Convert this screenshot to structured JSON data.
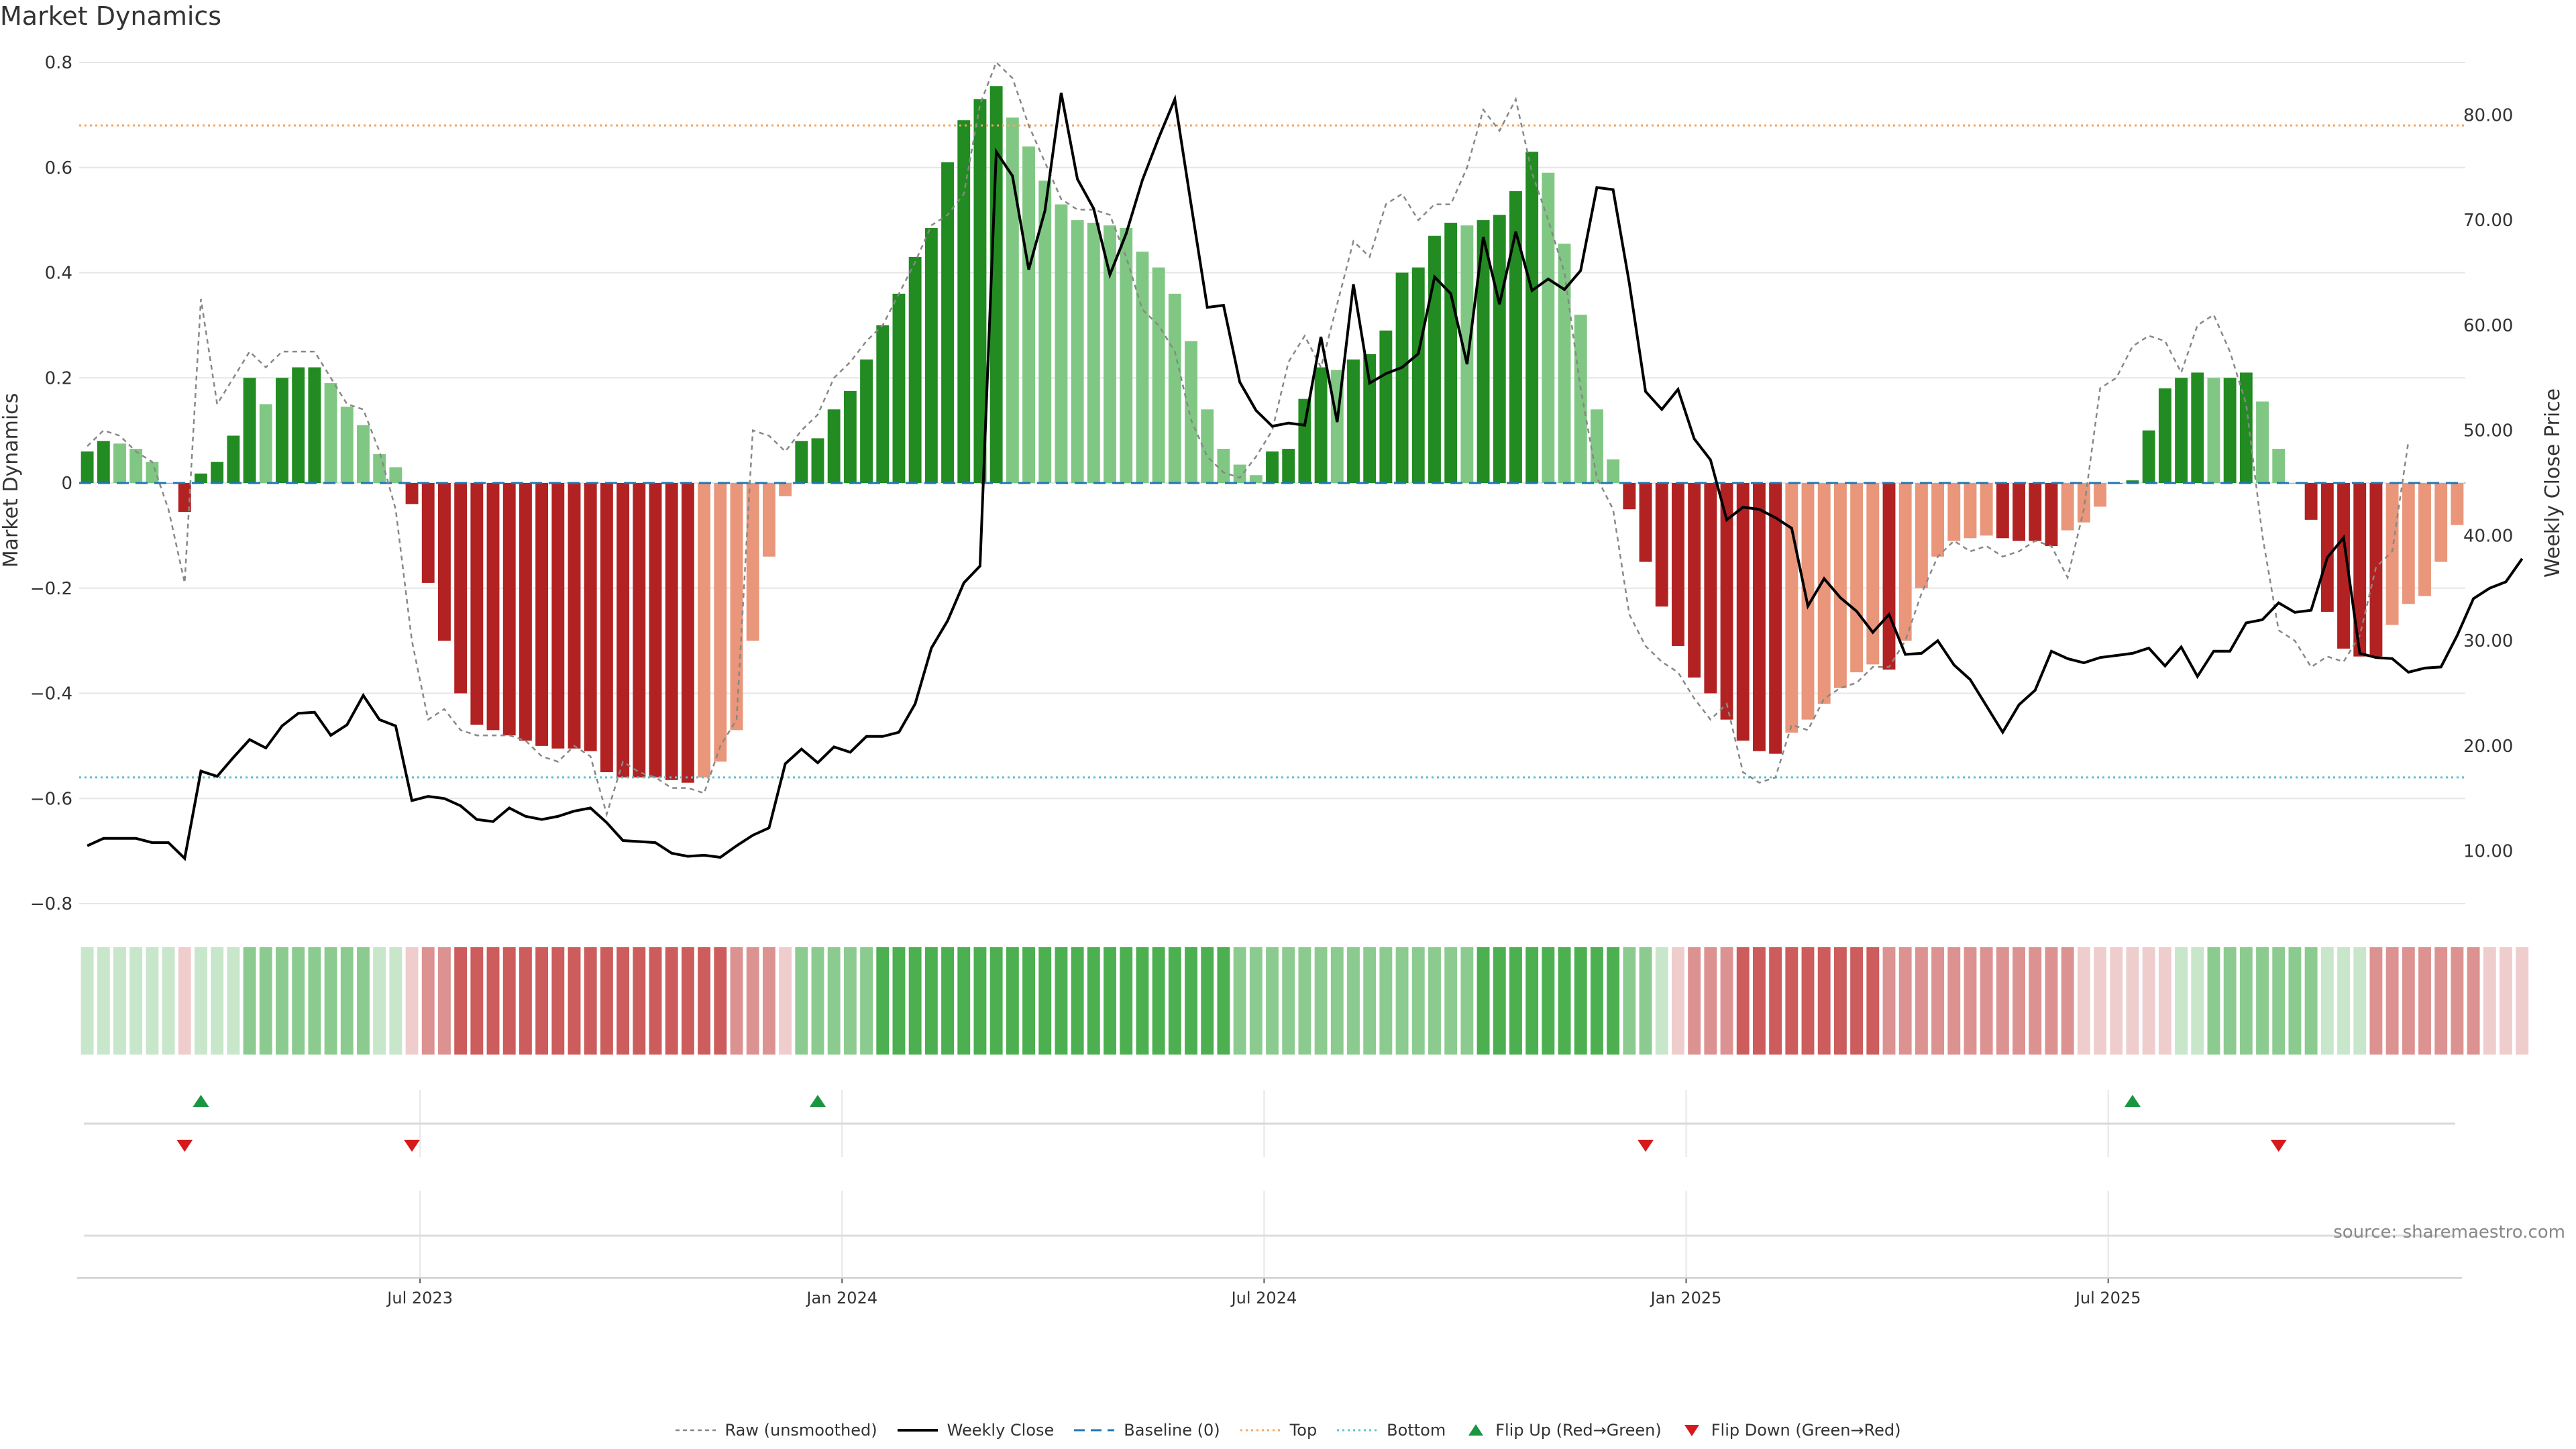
{
  "title": "Market Dynamics",
  "source": "source: sharemaestro.com",
  "colors": {
    "strong_green": "#228b22",
    "light_green": "#81c784",
    "strong_red": "#b22222",
    "light_red": "#e9967a",
    "top_line": "#f4a460",
    "bottom_line": "#5ebfcf",
    "baseline": "#1f77b4",
    "weekly_close": "#000000",
    "raw": "#888888",
    "flip_up": "#1a9641",
    "flip_down": "#d7191c"
  },
  "legend": [
    {
      "label": "Raw (unsmoothed)",
      "icon": "raw-line-icon"
    },
    {
      "label": "Weekly Close",
      "icon": "close-line-icon"
    },
    {
      "label": "Baseline (0)",
      "icon": "baseline-icon"
    },
    {
      "label": "Top",
      "icon": "top-line-icon"
    },
    {
      "label": "Bottom",
      "icon": "bottom-line-icon"
    },
    {
      "label": "Flip Up (Red→Green)",
      "icon": "triangle-up-icon"
    },
    {
      "label": "Flip Down (Green→Red)",
      "icon": "triangle-down-icon"
    }
  ],
  "chart_data": {
    "type": "bar",
    "title": "Market Dynamics",
    "ylabel": "Market Dynamics",
    "ylabel_right": "Weekly Close Price",
    "ylim": [
      -0.8,
      0.8
    ],
    "ylim_right": [
      5,
      85
    ],
    "yticks": [
      "−0.8",
      "−0.6",
      "−0.4",
      "−0.2",
      "0",
      "0.2",
      "0.4",
      "0.6",
      "0.8"
    ],
    "yticks_right": [
      "10.00",
      "20.00",
      "30.00",
      "40.00",
      "50.00",
      "60.00",
      "70.00",
      "80.00"
    ],
    "xticks": [
      "Jul 2023",
      "Jan 2024",
      "Jul 2024",
      "Jan 2025",
      "Jul 2025"
    ],
    "top_threshold": 0.68,
    "bottom_threshold": -0.56,
    "baseline": 0,
    "grid": true,
    "legend_position": "bottom",
    "market_dynamics": [
      0.06,
      0.08,
      0.075,
      0.065,
      0.04,
      0.0,
      -0.055,
      0.018,
      0.04,
      0.09,
      0.2,
      0.15,
      0.2,
      0.22,
      0.22,
      0.19,
      0.145,
      0.11,
      0.055,
      0.03,
      -0.04,
      -0.19,
      -0.3,
      -0.4,
      -0.46,
      -0.47,
      -0.48,
      -0.49,
      -0.5,
      -0.505,
      -0.505,
      -0.51,
      -0.55,
      -0.56,
      -0.56,
      -0.56,
      -0.565,
      -0.57,
      -0.56,
      -0.53,
      -0.47,
      -0.3,
      -0.14,
      -0.025,
      0.08,
      0.085,
      0.14,
      0.175,
      0.235,
      0.3,
      0.36,
      0.43,
      0.485,
      0.61,
      0.69,
      0.73,
      0.755,
      0.695,
      0.64,
      0.575,
      0.53,
      0.5,
      0.495,
      0.49,
      0.485,
      0.44,
      0.41,
      0.36,
      0.27,
      0.14,
      0.065,
      0.035,
      0.015,
      0.06,
      0.065,
      0.16,
      0.22,
      0.215,
      0.235,
      0.245,
      0.29,
      0.4,
      0.41,
      0.47,
      0.495,
      0.49,
      0.5,
      0.51,
      0.555,
      0.63,
      0.59,
      0.455,
      0.32,
      0.14,
      0.045,
      -0.05,
      -0.15,
      -0.235,
      -0.31,
      -0.37,
      -0.4,
      -0.45,
      -0.49,
      -0.51,
      -0.515,
      -0.475,
      -0.45,
      -0.42,
      -0.39,
      -0.36,
      -0.345,
      -0.355,
      -0.3,
      -0.2,
      -0.14,
      -0.11,
      -0.105,
      -0.1,
      -0.105,
      -0.11,
      -0.11,
      -0.12,
      -0.09,
      -0.075,
      -0.045,
      0.0,
      0.005,
      0.1,
      0.18,
      0.2,
      0.21,
      0.2,
      0.2,
      0.21,
      0.155,
      0.065,
      0.0,
      -0.07,
      -0.245,
      -0.315,
      -0.33,
      -0.33,
      -0.27,
      -0.23,
      -0.215,
      -0.15,
      -0.08
    ],
    "raw": [
      0.07,
      0.1,
      0.09,
      0.06,
      0.04,
      -0.05,
      -0.19,
      0.35,
      0.15,
      0.2,
      0.25,
      0.22,
      0.25,
      0.25,
      0.25,
      0.2,
      0.15,
      0.14,
      0.06,
      -0.05,
      -0.3,
      -0.45,
      -0.43,
      -0.47,
      -0.48,
      -0.48,
      -0.48,
      -0.49,
      -0.52,
      -0.53,
      -0.5,
      -0.52,
      -0.63,
      -0.53,
      -0.55,
      -0.56,
      -0.58,
      -0.58,
      -0.59,
      -0.5,
      -0.45,
      0.1,
      0.09,
      0.06,
      0.1,
      0.13,
      0.2,
      0.23,
      0.27,
      0.3,
      0.36,
      0.42,
      0.49,
      0.51,
      0.55,
      0.72,
      0.8,
      0.77,
      0.68,
      0.61,
      0.54,
      0.52,
      0.52,
      0.51,
      0.43,
      0.33,
      0.3,
      0.25,
      0.12,
      0.05,
      0.02,
      0.01,
      0.05,
      0.1,
      0.23,
      0.28,
      0.22,
      0.34,
      0.46,
      0.43,
      0.53,
      0.55,
      0.5,
      0.53,
      0.53,
      0.6,
      0.71,
      0.67,
      0.73,
      0.59,
      0.5,
      0.4,
      0.18,
      0.01,
      -0.05,
      -0.25,
      -0.31,
      -0.34,
      -0.36,
      -0.41,
      -0.45,
      -0.42,
      -0.55,
      -0.57,
      -0.56,
      -0.46,
      -0.47,
      -0.41,
      -0.39,
      -0.38,
      -0.35,
      -0.35,
      -0.3,
      -0.21,
      -0.14,
      -0.11,
      -0.13,
      -0.12,
      -0.14,
      -0.13,
      -0.11,
      -0.12,
      -0.18,
      -0.05,
      0.18,
      0.2,
      0.26,
      0.28,
      0.27,
      0.21,
      0.3,
      0.32,
      0.25,
      0.15,
      -0.1,
      -0.28,
      -0.3,
      -0.35,
      -0.33,
      -0.34,
      -0.29,
      -0.16,
      -0.13,
      0.08
    ],
    "weekly_close": [
      10.5,
      11.2,
      11.2,
      11.2,
      10.8,
      10.8,
      9.3,
      17.6,
      17.1,
      18.9,
      20.6,
      19.8,
      21.9,
      23.1,
      23.2,
      21.0,
      22.0,
      24.8,
      22.5,
      21.9,
      14.8,
      15.2,
      15.0,
      14.3,
      13.0,
      12.8,
      14.1,
      13.3,
      13.0,
      13.3,
      13.8,
      14.1,
      12.7,
      11.0,
      10.9,
      10.8,
      9.8,
      9.5,
      9.6,
      9.4,
      10.5,
      11.5,
      12.2,
      18.3,
      19.7,
      18.4,
      19.9,
      19.4,
      20.9,
      20.9,
      21.3,
      24.0,
      29.3,
      31.9,
      35.5,
      37.1,
      76.5,
      74.2,
      65.3,
      70.9,
      82.1,
      73.9,
      71.1,
      64.8,
      68.7,
      73.8,
      77.8,
      81.5,
      71.5,
      61.7,
      61.9,
      54.6,
      51.9,
      50.4,
      50.7,
      50.5,
      58.9,
      50.8,
      63.9,
      54.5,
      55.4,
      56.0,
      57.3,
      64.6,
      63.0,
      56.3,
      68.4,
      62.0,
      68.9,
      63.3,
      64.4,
      63.4,
      65.2,
      73.1,
      72.9,
      64.0,
      53.7,
      52.0,
      53.9,
      49.2,
      47.2,
      41.5,
      42.7,
      42.5,
      41.7,
      40.7,
      33.3,
      35.9,
      34.1,
      32.8,
      30.8,
      32.5,
      28.7,
      28.8,
      30.0,
      27.7,
      26.3,
      23.8,
      21.3,
      23.9,
      25.3,
      29.0,
      28.3,
      27.9,
      28.4,
      28.6,
      28.8,
      29.3,
      27.6,
      29.4,
      26.6,
      29.0,
      29.0,
      31.7,
      32.0,
      33.6,
      32.7,
      32.9,
      37.9,
      39.8,
      28.8,
      28.4,
      28.3,
      27.0,
      27.4,
      27.5,
      30.5,
      34.0,
      35.0,
      35.6,
      37.8
    ],
    "heat_strip": [
      "lg",
      "lg",
      "lg",
      "lg",
      "lg",
      "lg",
      "lr",
      "lg",
      "lg",
      "lg",
      "mg",
      "mg",
      "mg",
      "mg",
      "mg",
      "mg",
      "mg",
      "mg",
      "lg",
      "lg",
      "lr",
      "mr",
      "mr",
      "sr",
      "sr",
      "sr",
      "sr",
      "sr",
      "sr",
      "sr",
      "sr",
      "sr",
      "sr",
      "sr",
      "sr",
      "sr",
      "sr",
      "sr",
      "sr",
      "sr",
      "mr",
      "mr",
      "mr",
      "lr",
      "mg",
      "mg",
      "mg",
      "mg",
      "mg",
      "sg",
      "sg",
      "sg",
      "sg",
      "sg",
      "sg",
      "sg",
      "sg",
      "sg",
      "sg",
      "sg",
      "sg",
      "sg",
      "sg",
      "sg",
      "sg",
      "sg",
      "sg",
      "sg",
      "sg",
      "sg",
      "sg",
      "mg",
      "mg",
      "mg",
      "mg",
      "mg",
      "mg",
      "mg",
      "mg",
      "mg",
      "mg",
      "mg",
      "mg",
      "mg",
      "mg",
      "mg",
      "sg",
      "sg",
      "sg",
      "sg",
      "sg",
      "sg",
      "sg",
      "sg",
      "sg",
      "mg",
      "mg",
      "lg",
      "lr",
      "mr",
      "mr",
      "mr",
      "sr",
      "sr",
      "sr",
      "sr",
      "sr",
      "sr",
      "sr",
      "sr",
      "sr",
      "mr",
      "mr",
      "mr",
      "mr",
      "mr",
      "mr",
      "mr",
      "mr",
      "mr",
      "mr",
      "mr",
      "mr",
      "lr",
      "lr",
      "lr",
      "lr",
      "lr",
      "lr",
      "lg",
      "lg",
      "mg",
      "mg",
      "mg",
      "mg",
      "mg",
      "mg",
      "mg",
      "lg",
      "lg",
      "lg",
      "mr",
      "mr",
      "mr",
      "mr",
      "mr",
      "mr",
      "mr",
      "lr",
      "lr",
      "lr"
    ],
    "flip_up_weeks": [
      7,
      45,
      126
    ],
    "flip_down_weeks": [
      6,
      20,
      96,
      135
    ]
  }
}
